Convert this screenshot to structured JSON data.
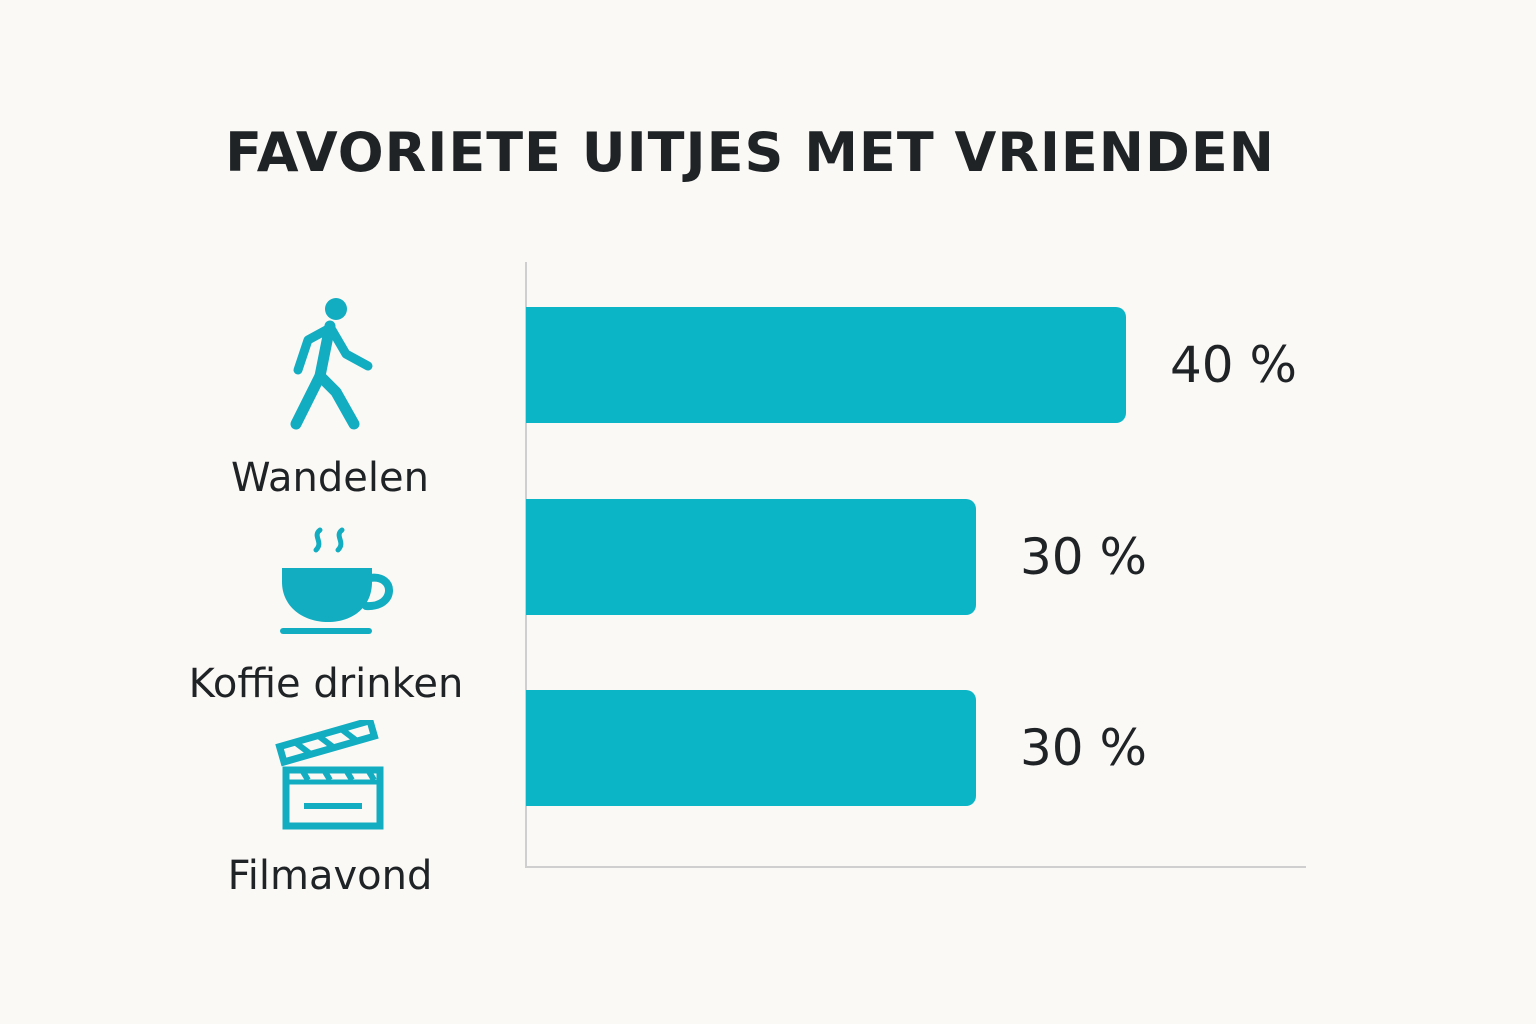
{
  "title": "FAVORIETE UITJES MET VRIENDEN",
  "colors": {
    "bar": "#0bb5c6",
    "icon": "#12adc1",
    "text": "#1f2326",
    "axis": "#cfcfcf",
    "background": "#fbf9f6"
  },
  "chart_data": {
    "type": "bar",
    "orientation": "horizontal",
    "title": "FAVORIETE UITJES MET VRIENDEN",
    "xlabel": "",
    "ylabel": "",
    "grid": false,
    "xlim": [
      0,
      52
    ],
    "categories": [
      "Wandelen",
      "Koffie drinken",
      "Filmavond"
    ],
    "values": [
      40,
      30,
      30
    ],
    "value_labels": [
      "40 %",
      "30 %",
      "30 %"
    ],
    "icons": [
      "walking-person-icon",
      "coffee-cup-icon",
      "clapperboard-icon"
    ]
  }
}
